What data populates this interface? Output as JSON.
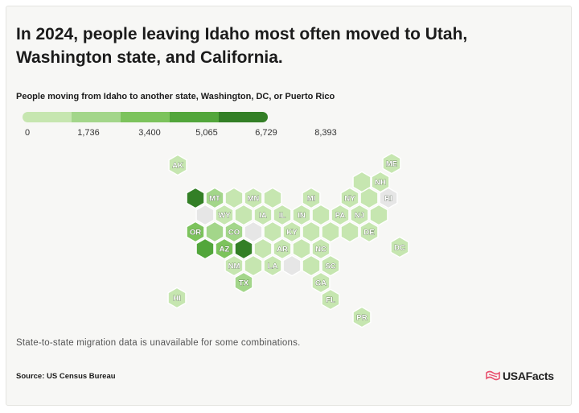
{
  "title": "In 2024, people leaving Idaho most often moved to Utah, Washington state, and California.",
  "subtitle": "People moving from Idaho to another state, Washington, DC, or Puerto Rico",
  "legend": {
    "ticks": [
      "0",
      "1,736",
      "3,400",
      "5,065",
      "6,729",
      "8,393"
    ],
    "colors": [
      "#c6e6b0",
      "#a3d68a",
      "#7cc35c",
      "#52a63b",
      "#337f26"
    ]
  },
  "colors": {
    "none": "#e6e6e6",
    "hex_stroke": "#ffffff",
    "card_bg": "#f7f7f5",
    "text": "#1b1b1b",
    "logo_accent": "#e8526f"
  },
  "map": {
    "type": "hex-tile-map",
    "value_shown_by": "fill color bucket (0 lightest to 4 darkest, null = data unavailable)",
    "states": [
      {
        "abbr": "AK",
        "label": "AK",
        "level": 0
      },
      {
        "abbr": "ME",
        "label": "ME",
        "level": 0
      },
      {
        "abbr": "NH",
        "label": "NH",
        "level": 0
      },
      {
        "abbr": "VT",
        "label": "",
        "level": 0
      },
      {
        "abbr": "WA",
        "label": "",
        "level": 4
      },
      {
        "abbr": "MT",
        "label": "MT",
        "level": 1
      },
      {
        "abbr": "ND",
        "label": "",
        "level": 0
      },
      {
        "abbr": "MN",
        "label": "MN",
        "level": 0
      },
      {
        "abbr": "WI",
        "label": "",
        "level": 0
      },
      {
        "abbr": "MI",
        "label": "MI",
        "level": 0
      },
      {
        "abbr": "NY",
        "label": "NY",
        "level": 0
      },
      {
        "abbr": "MA",
        "label": "",
        "level": 0
      },
      {
        "abbr": "RI",
        "label": "RI",
        "level": null
      },
      {
        "abbr": "ID",
        "label": "",
        "level": null
      },
      {
        "abbr": "WY",
        "label": "WY",
        "level": 0
      },
      {
        "abbr": "SD",
        "label": "",
        "level": 0
      },
      {
        "abbr": "IA",
        "label": "IA",
        "level": 0
      },
      {
        "abbr": "IL",
        "label": "IL",
        "level": 0
      },
      {
        "abbr": "IN",
        "label": "IN",
        "level": 0
      },
      {
        "abbr": "OH",
        "label": "",
        "level": 0
      },
      {
        "abbr": "PA",
        "label": "PA",
        "level": 0
      },
      {
        "abbr": "NJ",
        "label": "NJ",
        "level": 0
      },
      {
        "abbr": "CT",
        "label": "",
        "level": 0
      },
      {
        "abbr": "OR",
        "label": "OR",
        "level": 2
      },
      {
        "abbr": "NV",
        "label": "",
        "level": 1
      },
      {
        "abbr": "CO",
        "label": "CO",
        "level": 1
      },
      {
        "abbr": "NE",
        "label": "",
        "level": null
      },
      {
        "abbr": "MO",
        "label": "",
        "level": 0
      },
      {
        "abbr": "KY",
        "label": "KY",
        "level": 0
      },
      {
        "abbr": "WV",
        "label": "",
        "level": 0
      },
      {
        "abbr": "VA",
        "label": "",
        "level": 0
      },
      {
        "abbr": "MD",
        "label": "",
        "level": 0
      },
      {
        "abbr": "DE",
        "label": "DE",
        "level": 0
      },
      {
        "abbr": "CA",
        "label": "",
        "level": 3
      },
      {
        "abbr": "AZ",
        "label": "AZ",
        "level": 2
      },
      {
        "abbr": "UT",
        "label": "",
        "level": 4
      },
      {
        "abbr": "KS",
        "label": "",
        "level": 0
      },
      {
        "abbr": "AR",
        "label": "AR",
        "level": 0
      },
      {
        "abbr": "TN",
        "label": "",
        "level": 0
      },
      {
        "abbr": "NC",
        "label": "NC",
        "level": 0
      },
      {
        "abbr": "DC",
        "label": "DC",
        "level": 0
      },
      {
        "abbr": "NM",
        "label": "NM",
        "level": 0
      },
      {
        "abbr": "OK",
        "label": "",
        "level": 0
      },
      {
        "abbr": "LA",
        "label": "LA",
        "level": 0
      },
      {
        "abbr": "MS",
        "label": "",
        "level": null
      },
      {
        "abbr": "AL",
        "label": "",
        "level": 0
      },
      {
        "abbr": "SC",
        "label": "SC",
        "level": 0
      },
      {
        "abbr": "TX",
        "label": "TX",
        "level": 1
      },
      {
        "abbr": "GA",
        "label": "GA",
        "level": 0
      },
      {
        "abbr": "HI",
        "label": "HI",
        "level": 0
      },
      {
        "abbr": "FL",
        "label": "FL",
        "level": 0
      },
      {
        "abbr": "PR",
        "label": "PR",
        "level": 0
      }
    ]
  },
  "note": "State-to-state migration data is unavailable for some combinations.",
  "source": "Source: US Census Bureau",
  "logo": {
    "text": "USAFacts",
    "icon": "usafacts-flag-icon"
  }
}
